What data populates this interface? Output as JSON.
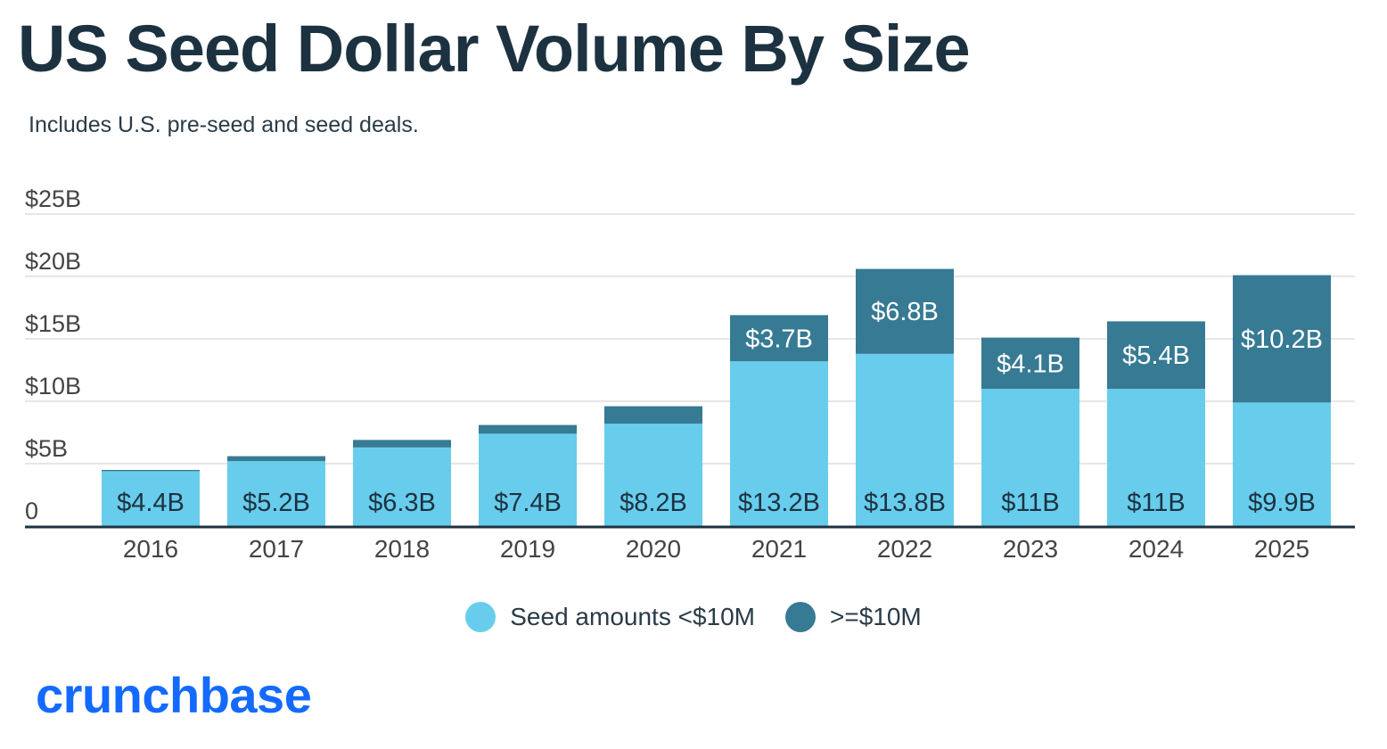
{
  "header": {
    "title": "US Seed Dollar Volume By Size",
    "subtitle": "Includes U.S. pre-seed and seed deals."
  },
  "logo": {
    "text": "crunchbase"
  },
  "colors": {
    "small": "#68cdec",
    "large": "#367a93",
    "text_dark": "#1d3240",
    "grid": "#e6e6e6",
    "axis": "#1d3240",
    "logo": "#146aff"
  },
  "chart_data": {
    "type": "bar",
    "stacked": true,
    "categories": [
      "2016",
      "2017",
      "2018",
      "2019",
      "2020",
      "2021",
      "2022",
      "2023",
      "2024",
      "2025"
    ],
    "series": [
      {
        "name": "Seed amounts <$10M",
        "values": [
          4.4,
          5.2,
          6.3,
          7.4,
          8.2,
          13.2,
          13.8,
          11,
          11,
          9.9
        ],
        "labels": [
          "$4.4B",
          "$5.2B",
          "$6.3B",
          "$7.4B",
          "$8.2B",
          "$13.2B",
          "$13.8B",
          "$11B",
          "$11B",
          "$9.9B"
        ]
      },
      {
        "name": ">=$10M",
        "values": [
          0.1,
          0.4,
          0.6,
          0.7,
          1.4,
          3.7,
          6.8,
          4.1,
          5.4,
          10.2
        ],
        "labels": [
          "",
          "",
          "",
          "",
          "",
          "$3.7B",
          "$6.8B",
          "$4.1B",
          "$5.4B",
          "$10.2B"
        ]
      }
    ],
    "y_ticks": [
      0,
      5,
      10,
      15,
      20,
      25
    ],
    "y_tick_labels": [
      "0",
      "$5B",
      "$10B",
      "$15B",
      "$20B",
      "$25B"
    ],
    "ylim": [
      0,
      25
    ],
    "grid": true,
    "legend_position": "bottom-center"
  }
}
